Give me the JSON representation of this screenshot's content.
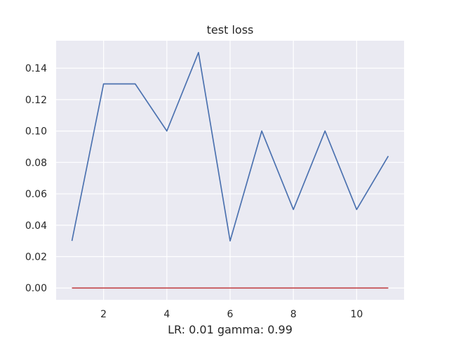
{
  "chart_data": {
    "type": "line",
    "title": "test loss",
    "xlabel": "LR: 0.01 gamma: 0.99",
    "ylabel": "",
    "x": [
      1,
      2,
      3,
      4,
      5,
      6,
      7,
      8,
      9,
      10,
      11
    ],
    "series": [
      {
        "values": [
          0.03,
          0.13,
          0.13,
          0.1,
          0.15,
          0.03,
          0.1,
          0.05,
          0.1,
          0.05,
          0.084
        ],
        "color": "#4c72b0"
      },
      {
        "values": [
          0,
          0,
          0,
          0,
          0,
          0,
          0,
          0,
          0,
          0,
          0
        ],
        "color": "#c44e52"
      }
    ],
    "xlim": [
      0.5,
      11.5
    ],
    "ylim": [
      -0.0075,
      0.1575
    ],
    "xticks": [
      2,
      4,
      6,
      8,
      10
    ],
    "xtick_labels": [
      "2",
      "4",
      "6",
      "8",
      "10"
    ],
    "yticks": [
      0.0,
      0.02,
      0.04,
      0.06,
      0.08,
      0.1,
      0.12,
      0.14
    ],
    "ytick_labels": [
      "0.00",
      "0.02",
      "0.04",
      "0.06",
      "0.08",
      "0.10",
      "0.12",
      "0.14"
    ],
    "grid": true,
    "background_color": "#eaeaf2",
    "grid_color": "#ffffff"
  }
}
